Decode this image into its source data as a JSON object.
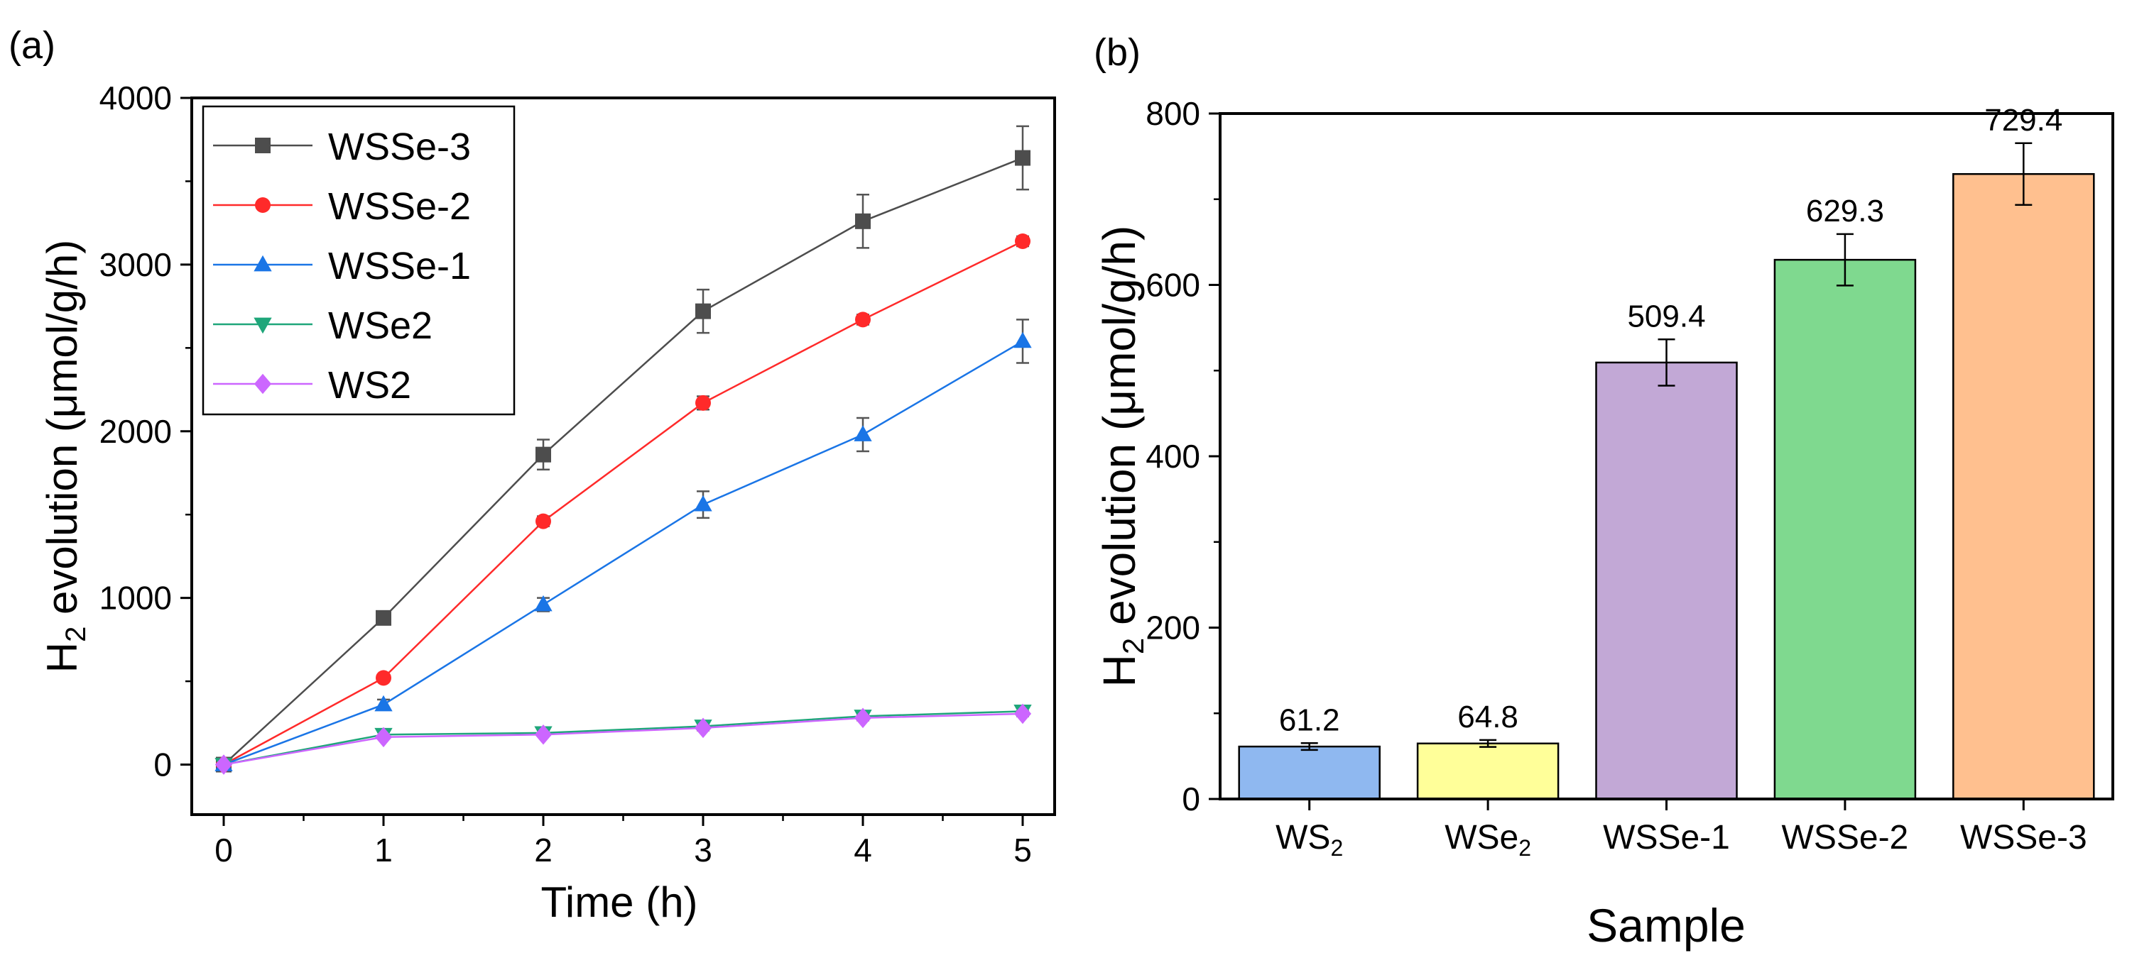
{
  "panel_a": {
    "label": "(a)",
    "xlabel": "Time (h)",
    "ylabel_pre": "H",
    "ylabel_sub": "2",
    "ylabel_post": " evolution (μmol/g/h)"
  },
  "panel_b": {
    "label": "(b)",
    "xlabel": "Sample",
    "ylabel_pre": "H",
    "ylabel_sub": "2",
    "ylabel_post": " evolution (μmol/g/h)"
  },
  "chart_data": [
    {
      "type": "line",
      "panel": "(a)",
      "xlabel": "Time (h)",
      "ylabel": "H2 evolution (μmol/g/h)",
      "xlim": [
        -0.2,
        5.2
      ],
      "ylim": [
        -300,
        4000
      ],
      "xticks": [
        0,
        1,
        2,
        3,
        4,
        5
      ],
      "yticks": [
        0,
        1000,
        2000,
        3000,
        4000
      ],
      "legend_position": "top-left",
      "x": [
        0,
        1,
        2,
        3,
        4,
        5
      ],
      "series": [
        {
          "name": "WSSe-3",
          "color": "#4d4d4d",
          "marker": "square",
          "values": [
            0,
            880,
            1860,
            2720,
            3260,
            3640
          ],
          "errors": [
            0,
            40,
            90,
            130,
            160,
            190
          ]
        },
        {
          "name": "WSSe-2",
          "color": "#ff2a2a",
          "marker": "circle",
          "values": [
            0,
            520,
            1460,
            2170,
            2670,
            3140
          ],
          "errors": [
            0,
            20,
            30,
            40,
            30,
            30
          ]
        },
        {
          "name": "WSSe-1",
          "color": "#1a75e6",
          "marker": "triangle-up",
          "values": [
            0,
            360,
            960,
            1560,
            1980,
            2540
          ],
          "errors": [
            0,
            30,
            40,
            80,
            100,
            130
          ]
        },
        {
          "name": "WSe2",
          "color": "#1fa67a",
          "marker": "triangle-down",
          "values": [
            0,
            180,
            190,
            230,
            290,
            320
          ],
          "errors": [
            0,
            15,
            15,
            20,
            20,
            20
          ]
        },
        {
          "name": "WS2",
          "color": "#cc66ff",
          "marker": "diamond",
          "values": [
            0,
            165,
            180,
            220,
            280,
            305
          ],
          "errors": [
            0,
            10,
            10,
            15,
            15,
            15
          ]
        }
      ]
    },
    {
      "type": "bar",
      "panel": "(b)",
      "xlabel": "Sample",
      "ylabel": "H2 evolution (μmol/g/h)",
      "ylim": [
        0,
        800
      ],
      "yticks": [
        0,
        200,
        400,
        600,
        800
      ],
      "categories": [
        "WS2",
        "WSe2",
        "WSSe-1",
        "WSSe-2",
        "WSSe-3"
      ],
      "category_parts": [
        [
          "WS",
          "2"
        ],
        [
          "WSe",
          "2"
        ],
        [
          "WSSe-1",
          ""
        ],
        [
          "WSSe-2",
          ""
        ],
        [
          "WSSe-3",
          ""
        ]
      ],
      "values": [
        61.2,
        64.8,
        509.4,
        629.3,
        729.4
      ],
      "value_labels": [
        "61.2",
        "64.8",
        "509.4",
        "629.3",
        "729.4"
      ],
      "errors": [
        4,
        4,
        27,
        30,
        36
      ],
      "colors": [
        "#8fb8f0",
        "#ffff99",
        "#c2a8d6",
        "#7fd98f",
        "#ffc08f"
      ]
    }
  ]
}
